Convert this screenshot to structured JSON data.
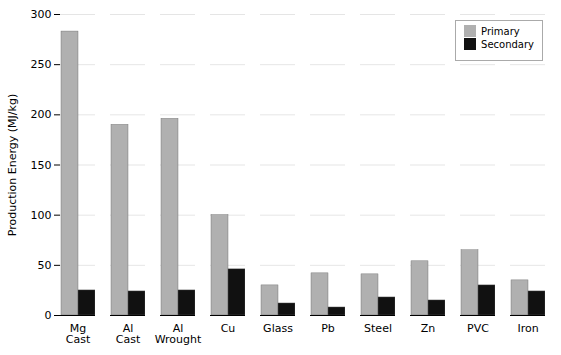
{
  "chart_data": {
    "type": "bar",
    "categories": [
      "Mg\nCast",
      "Al\nCast",
      "Al\nWrought",
      "Cu",
      "Glass",
      "Pb",
      "Steel",
      "Zn",
      "PVC",
      "Iron"
    ],
    "series": [
      {
        "name": "Primary",
        "color": "#b0b0b0",
        "values": [
          283,
          190,
          196,
          100,
          30,
          42,
          41,
          54,
          65,
          35
        ]
      },
      {
        "name": "Secondary",
        "color": "#111111",
        "values": [
          25,
          24,
          25,
          46,
          12,
          8,
          18,
          15,
          30,
          24
        ]
      }
    ],
    "ylabel": "Production Energy (MJ/kg)",
    "ylim": [
      0,
      300
    ],
    "yticks": [
      0,
      50,
      100,
      150,
      200,
      250,
      300
    ],
    "grid": true,
    "legend": "upper right"
  }
}
